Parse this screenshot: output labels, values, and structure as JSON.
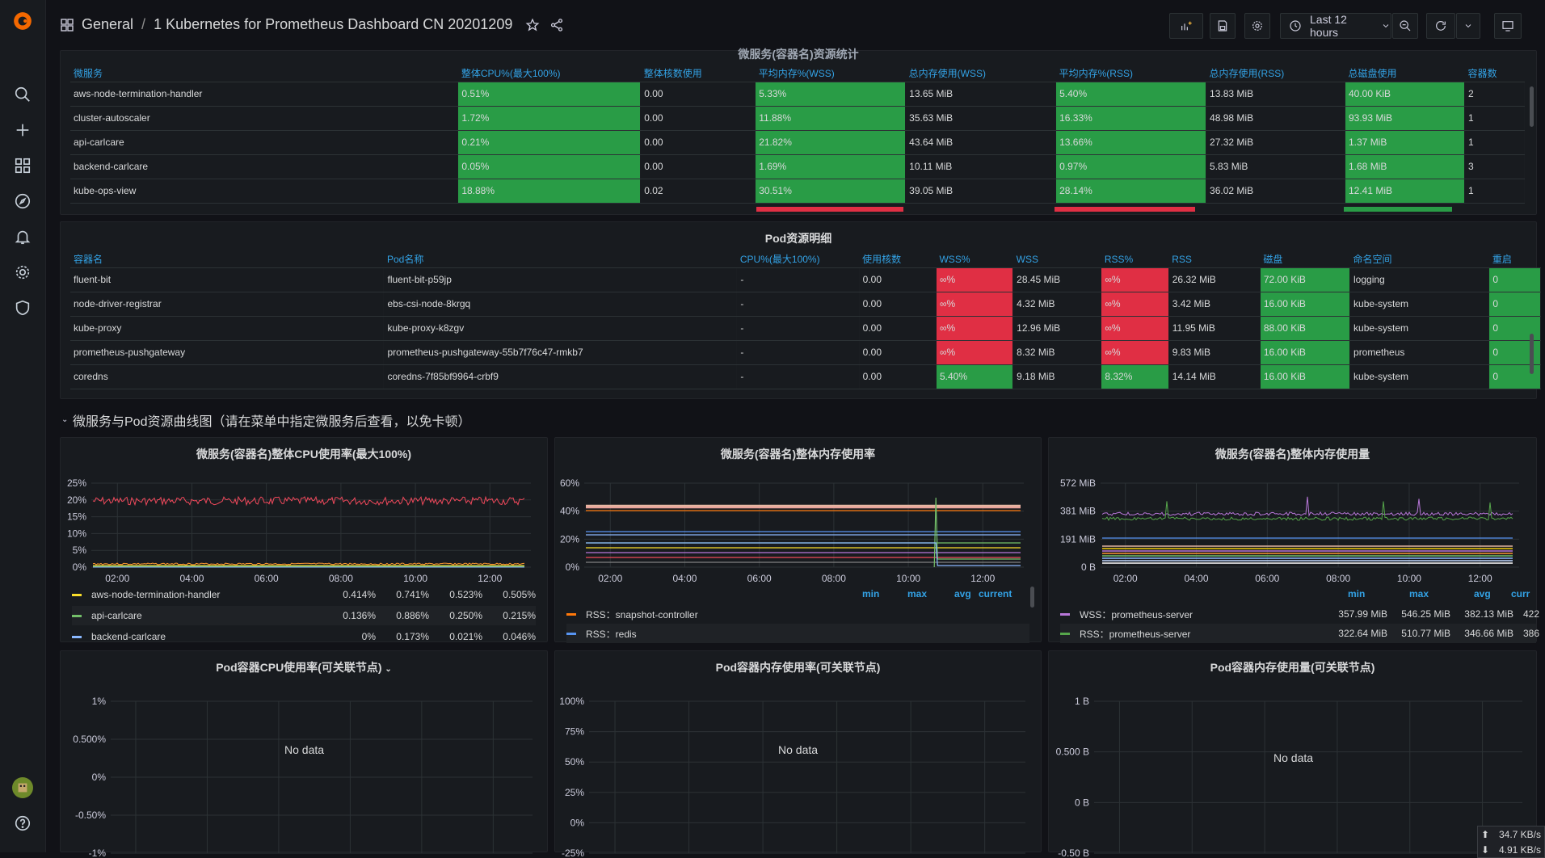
{
  "breadcrumb": {
    "folder": "General",
    "separator": "/",
    "title": "1 Kubernetes for Prometheus Dashboard CN 20201209"
  },
  "toolbar": {
    "time_range": "Last 12 hours"
  },
  "top_table": {
    "title": "微服务(容器名)资源统计",
    "columns": [
      "微服务",
      "整体CPU%(最大100%)",
      "整体核数使用",
      "平均内存%(WSS)",
      "总内存使用(WSS)",
      "平均内存%(RSS)",
      "总内存使用(RSS)",
      "总磁盘使用",
      "容器数"
    ],
    "rows": [
      [
        "aws-node-termination-handler",
        "0.51%",
        "0.00",
        "5.33%",
        "13.65 MiB",
        "5.40%",
        "13.83 MiB",
        "40.00 KiB",
        "2"
      ],
      [
        "cluster-autoscaler",
        "1.72%",
        "0.00",
        "11.88%",
        "35.63 MiB",
        "16.33%",
        "48.98 MiB",
        "93.93 MiB",
        "1"
      ],
      [
        "api-carlcare",
        "0.21%",
        "0.00",
        "21.82%",
        "43.64 MiB",
        "13.66%",
        "27.32 MiB",
        "1.37 MiB",
        "1"
      ],
      [
        "backend-carlcare",
        "0.05%",
        "0.00",
        "1.69%",
        "10.11 MiB",
        "0.97%",
        "5.83 MiB",
        "1.68 MiB",
        "3"
      ],
      [
        "kube-ops-view",
        "18.88%",
        "0.02",
        "30.51%",
        "39.05 MiB",
        "28.14%",
        "36.02 MiB",
        "12.41 MiB",
        "1"
      ]
    ]
  },
  "pod_table": {
    "title": "Pod资源明细",
    "columns": [
      "容器名",
      "Pod名称",
      "CPU%(最大100%)",
      "使用核数",
      "WSS%",
      "WSS",
      "RSS%",
      "RSS",
      "磁盘",
      "命名空间",
      "重启"
    ],
    "rows": [
      [
        "fluent-bit",
        "fluent-bit-p59jp",
        "-",
        "0.00",
        "∞%",
        "28.45 MiB",
        "∞%",
        "26.32 MiB",
        "72.00 KiB",
        "logging",
        "0"
      ],
      [
        "node-driver-registrar",
        "ebs-csi-node-8krgq",
        "-",
        "0.00",
        "∞%",
        "4.32 MiB",
        "∞%",
        "3.42 MiB",
        "16.00 KiB",
        "kube-system",
        "0"
      ],
      [
        "kube-proxy",
        "kube-proxy-k8zgv",
        "-",
        "0.00",
        "∞%",
        "12.96 MiB",
        "∞%",
        "11.95 MiB",
        "88.00 KiB",
        "kube-system",
        "0"
      ],
      [
        "prometheus-pushgateway",
        "prometheus-pushgateway-55b7f76c47-rmkb7",
        "-",
        "0.00",
        "∞%",
        "8.32 MiB",
        "∞%",
        "9.83 MiB",
        "16.00 KiB",
        "prometheus",
        "0"
      ],
      [
        "coredns",
        "coredns-7f85bf9964-crbf9",
        "-",
        "0.00",
        "5.40%",
        "9.18 MiB",
        "8.32%",
        "14.14 MiB",
        "16.00 KiB",
        "kube-system",
        "0"
      ]
    ]
  },
  "row_title": "微服务与Pod资源曲线图（请在菜单中指定微服务后查看，以免卡顿）",
  "charts": {
    "cpu": {
      "title": "微服务(容器名)整体CPU使用率(最大100%)",
      "yticks": [
        "25%",
        "20%",
        "15%",
        "10%",
        "5%",
        "0%"
      ],
      "xticks": [
        "02:00",
        "04:00",
        "06:00",
        "08:00",
        "10:00",
        "12:00"
      ],
      "legend": [
        {
          "name": "aws-node-termination-handler",
          "color": "#fade2a",
          "vals": [
            "0.414%",
            "0.741%",
            "0.523%",
            "0.505%"
          ]
        },
        {
          "name": "api-carlcare",
          "color": "#73bf69",
          "vals": [
            "0.136%",
            "0.886%",
            "0.250%",
            "0.215%"
          ]
        },
        {
          "name": "backend-carlcare",
          "color": "#8ab8ff",
          "vals": [
            "0%",
            "0.173%",
            "0.021%",
            "0.046%"
          ]
        }
      ]
    },
    "memrate": {
      "title": "微服务(容器名)整体内存使用率",
      "yticks": [
        "60%",
        "40%",
        "20%",
        "0%"
      ],
      "xticks": [
        "02:00",
        "04:00",
        "06:00",
        "08:00",
        "10:00",
        "12:00"
      ],
      "legend_head": [
        "min",
        "max",
        "avg",
        "current"
      ],
      "legend": [
        {
          "name": "RSS：snapshot-controller",
          "color": "#ff780a"
        },
        {
          "name": "RSS：redis",
          "color": "#5794f2"
        }
      ]
    },
    "memuse": {
      "title": "微服务(容器名)整体内存使用量",
      "yticks": [
        "572 MiB",
        "381 MiB",
        "191 MiB",
        "0 B"
      ],
      "xticks": [
        "02:00",
        "04:00",
        "06:00",
        "08:00",
        "10:00",
        "12:00"
      ],
      "legend_head": [
        "min",
        "max",
        "avg",
        "curr"
      ],
      "legend": [
        {
          "name": "WSS：prometheus-server",
          "color": "#b877d9",
          "vals": [
            "357.99 MiB",
            "546.25 MiB",
            "382.13 MiB",
            "422"
          ]
        },
        {
          "name": "RSS：prometheus-server",
          "color": "#56a64b",
          "vals": [
            "322.64 MiB",
            "510.77 MiB",
            "346.66 MiB",
            "386"
          ]
        }
      ]
    },
    "pod_cpu": {
      "title": "Pod容器CPU使用率(可关联节点)",
      "yticks": [
        "1%",
        "0.500%",
        "0%",
        "-0.50%",
        "-1%"
      ],
      "nodata": "No data"
    },
    "pod_memrate": {
      "title": "Pod容器内存使用率(可关联节点)",
      "yticks": [
        "100%",
        "75%",
        "50%",
        "25%",
        "0%",
        "-25%"
      ],
      "nodata": "No data"
    },
    "pod_memuse": {
      "title": "Pod容器内存使用量(可关联节点)",
      "yticks": [
        "1 B",
        "0.500 B",
        "0 B",
        "-0.50 B"
      ],
      "nodata": "No data"
    }
  },
  "net": {
    "up": "34.7 KB/s",
    "down": "4.91 KB/s"
  },
  "colors": {
    "green": "#299c46",
    "red": "#e02f44",
    "blue_header": "#33a2e5",
    "bg": "#111217",
    "panel": "#181b1f"
  }
}
